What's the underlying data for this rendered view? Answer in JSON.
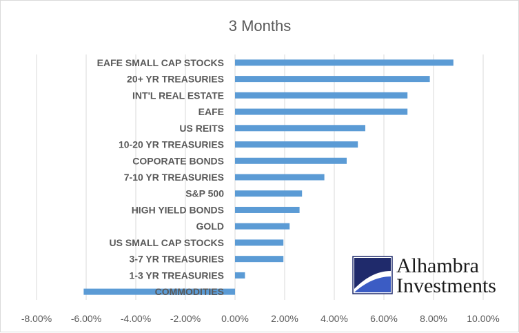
{
  "chart_data": {
    "type": "bar",
    "orientation": "horizontal",
    "title": "3 Months",
    "categories": [
      "EAFE SMALL CAP STOCKS",
      "20+ YR TREASURIES",
      "INT'L REAL ESTATE",
      "EAFE",
      "US REITS",
      "10-20 YR TREASURIES",
      "COPORATE BONDS",
      "7-10 YR TREASURIES",
      "S&P 500",
      "HIGH YIELD BONDS",
      "GOLD",
      "US SMALL CAP STOCKS",
      "3-7 YR TREASURIES",
      "1-3 YR TREASURIES",
      "COMMODITIES"
    ],
    "values": [
      8.8,
      7.85,
      6.95,
      6.95,
      5.25,
      4.95,
      4.5,
      3.6,
      2.7,
      2.6,
      2.2,
      1.95,
      1.95,
      0.4,
      -6.1
    ],
    "xlim": [
      -8,
      10
    ],
    "xticks": [
      -8,
      -6,
      -4,
      -2,
      0,
      2,
      4,
      6,
      8,
      10
    ],
    "xtick_labels": [
      "-8.00%",
      "-6.00%",
      "-4.00%",
      "-2.00%",
      "0.00%",
      "2.00%",
      "4.00%",
      "6.00%",
      "8.00%",
      "10.00%"
    ],
    "grid": "vertical",
    "bar_color": "#5b9bd5",
    "legend": "none"
  },
  "logo": {
    "line1": "Alhambra",
    "line2": "Investments",
    "colors": {
      "navy": "#1f2a6b",
      "blue": "#3b5cc4"
    }
  }
}
